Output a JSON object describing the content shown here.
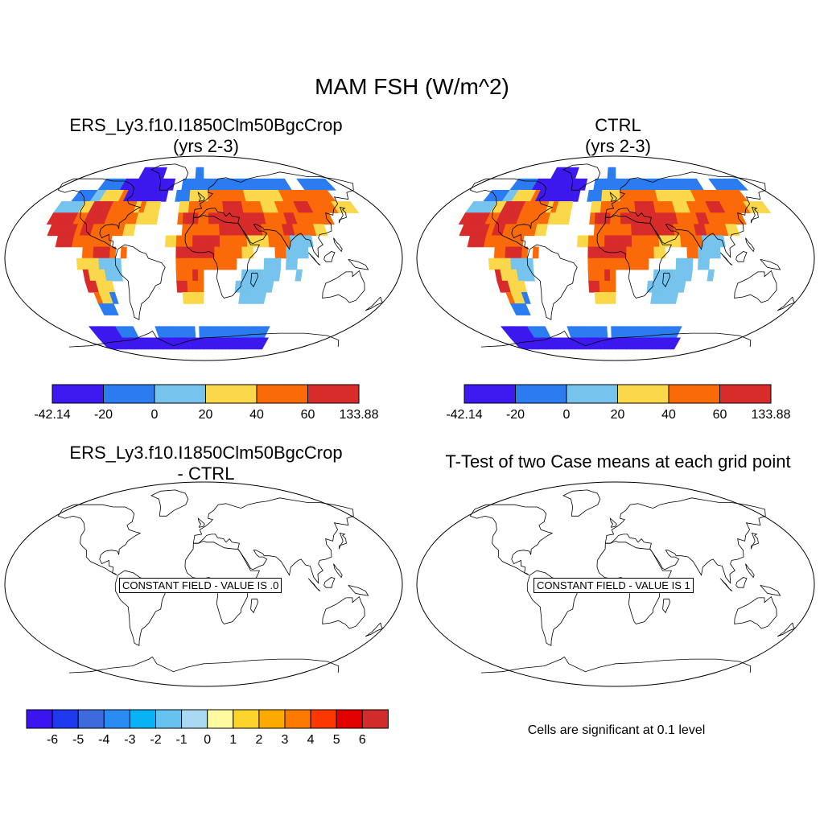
{
  "figure": {
    "title": "MAM FSH (W/m^2)",
    "panel1": {
      "title_line1": "ERS_Ly3.f10.I1850Clm50BgcCrop",
      "title_line2": "(yrs 2-3)"
    },
    "panel2": {
      "title_line1": "CTRL",
      "title_line2": "(yrs 2-3)"
    },
    "panel3": {
      "title_line1": "ERS_Ly3.f10.I1850Clm50BgcCrop",
      "title_line2": "- CTRL",
      "constant_label": "CONSTANT FIELD - VALUE IS .0"
    },
    "panel4": {
      "title_line1": "T-Test of two Case means at each grid point",
      "constant_label": "CONSTANT FIELD - VALUE IS 1"
    },
    "significance_note": "Cells are significant at 0.1 level"
  },
  "colorbar_main": {
    "labels": [
      "-42.14",
      "-20",
      "0",
      "20",
      "40",
      "60",
      "133.88"
    ],
    "colors": [
      "#3d19f0",
      "#2b7cf0",
      "#76c3ee",
      "#fbd84a",
      "#fb6a09",
      "#d82b2b"
    ]
  },
  "colorbar_diff": {
    "labels": [
      "-6",
      "-5",
      "-4",
      "-3",
      "-2",
      "-1",
      "0",
      "1",
      "2",
      "3",
      "4",
      "5",
      "6"
    ],
    "colors": [
      "#3c14f0",
      "#1f39ee",
      "#3d6bde",
      "#2a8cf2",
      "#08b2f4",
      "#66c2ef",
      "#aadaf2",
      "#fffaa0",
      "#fcd42c",
      "#fcaa00",
      "#fc7a00",
      "#fc3700",
      "#e30000",
      "#d22b2b"
    ]
  },
  "map_grid": {
    "lon_start": -180,
    "lon_step": 10,
    "lat_start": 90,
    "lat_step": 10,
    "rows": [
      "..........................................................................................",
      "....................111111........22.....................................................",
      "............22222111111111111..2222222222222222222222222...2222222....222...............",
      "........22223344445111111111..2224444555555554444444455555555555...............",
      "......333334466665555545444....445555555666655554445555666555554444",
      "......666665566665555554444....566655666666666665555665555555",
      ".......6666656655555544.........555555566666666555566555544",
      ".........6665555555..........445556666655555444455553333",
      "..............556665.5.........66666665555544....553333",
      ".............44443333..........55555555555.....333.33",
      "..............6444333..........55565.......3333333...3",
      "..............66444............66555......3333333",
      "...............5442.............4444.......33333",
      "...............222.................................",
      "................................................",
      "..........1111112222.....222222222.2222222222222222",
      "..........111111111111111111111111111111111111111111"
    ],
    "colors": {
      "1": "#3d19f0",
      "2": "#2b7cf0",
      "3": "#76c3ee",
      "4": "#fbd84a",
      "5": "#fb6a09",
      "6": "#d82b2b"
    }
  }
}
